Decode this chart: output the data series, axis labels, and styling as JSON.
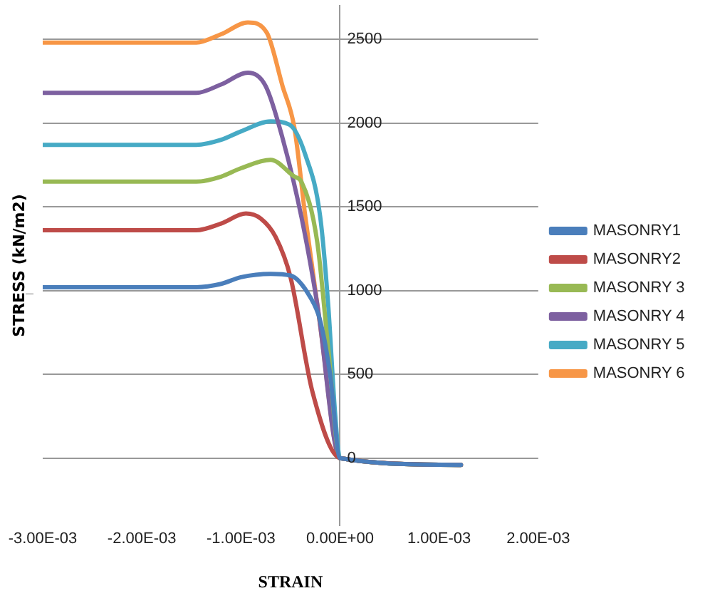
{
  "chart_data": {
    "type": "line",
    "xlabel": "STRAIN",
    "ylabel": "STRESS (kN/m2)",
    "xlim": [
      -0.003,
      0.002
    ],
    "ylim": [
      -400,
      2700
    ],
    "xticks": [
      {
        "value": -0.003,
        "label": "-3.00E-03"
      },
      {
        "value": -0.002,
        "label": "-2.00E-03"
      },
      {
        "value": -0.001,
        "label": "-1.00E-03"
      },
      {
        "value": 0,
        "label": "0.00E+00"
      },
      {
        "value": 0.001,
        "label": "1.00E-03"
      },
      {
        "value": 0.002,
        "label": "2.00E-03"
      }
    ],
    "yticks": [
      0,
      500,
      1000,
      1500,
      2000,
      2500
    ],
    "grid": "y",
    "legend": "right",
    "marker": "none",
    "line_style": "solid",
    "annotations": [
      "—"
    ],
    "series": [
      {
        "name": "MASONRY1",
        "color": "#4a7ebb",
        "x": [
          -0.003,
          -0.00145,
          -0.0012,
          -0.001,
          -0.0007,
          -0.0005,
          -0.0003,
          -0.0002,
          -0.0001,
          0,
          0.00122
        ],
        "values": [
          1020,
          1020,
          1040,
          1080,
          1100,
          1090,
          960,
          820,
          500,
          0,
          -40
        ]
      },
      {
        "name": "MASONRY2",
        "color": "#be4b48",
        "x": [
          -0.003,
          -0.00145,
          -0.0012,
          -0.00095,
          -0.0008,
          -0.00065,
          -0.0005,
          -0.00028,
          0,
          0.00122
        ],
        "values": [
          1360,
          1360,
          1400,
          1460,
          1430,
          1320,
          1080,
          400,
          0,
          -40
        ]
      },
      {
        "name": "MASONRY 3",
        "color": "#98b954",
        "x": [
          -0.003,
          -0.00145,
          -0.0012,
          -0.001,
          -0.0007,
          -0.00046,
          -0.00039,
          -0.00023,
          -0.00012,
          0,
          0.00122
        ],
        "values": [
          1650,
          1650,
          1680,
          1730,
          1780,
          1680,
          1650,
          1290,
          660,
          0,
          -40
        ]
      },
      {
        "name": "MASONRY 4",
        "color": "#7d60a0",
        "x": [
          -0.003,
          -0.00145,
          -0.0012,
          -0.00093,
          -0.00075,
          -0.00058,
          -0.00039,
          -0.00023,
          0,
          0.00122
        ],
        "values": [
          2180,
          2180,
          2230,
          2300,
          2220,
          1910,
          1440,
          920,
          0,
          -40
        ]
      },
      {
        "name": "MASONRY 5",
        "color": "#46aac5",
        "x": [
          -0.003,
          -0.00145,
          -0.0012,
          -0.001,
          -0.0007,
          -0.00051,
          -0.00035,
          -0.0002,
          -0.00012,
          -5e-05,
          0,
          0.00122
        ],
        "values": [
          1870,
          1870,
          1900,
          1950,
          2010,
          1990,
          1810,
          1440,
          920,
          270,
          0,
          -40
        ]
      },
      {
        "name": "MASONRY 6",
        "color": "#f79646",
        "x": [
          -0.003,
          -0.00145,
          -0.0012,
          -0.00093,
          -0.00074,
          -0.00058,
          -0.00046,
          -0.00035,
          -0.0002,
          0,
          0.00122
        ],
        "values": [
          2480,
          2480,
          2530,
          2600,
          2540,
          2220,
          1970,
          1440,
          790,
          0,
          -40
        ]
      }
    ]
  }
}
